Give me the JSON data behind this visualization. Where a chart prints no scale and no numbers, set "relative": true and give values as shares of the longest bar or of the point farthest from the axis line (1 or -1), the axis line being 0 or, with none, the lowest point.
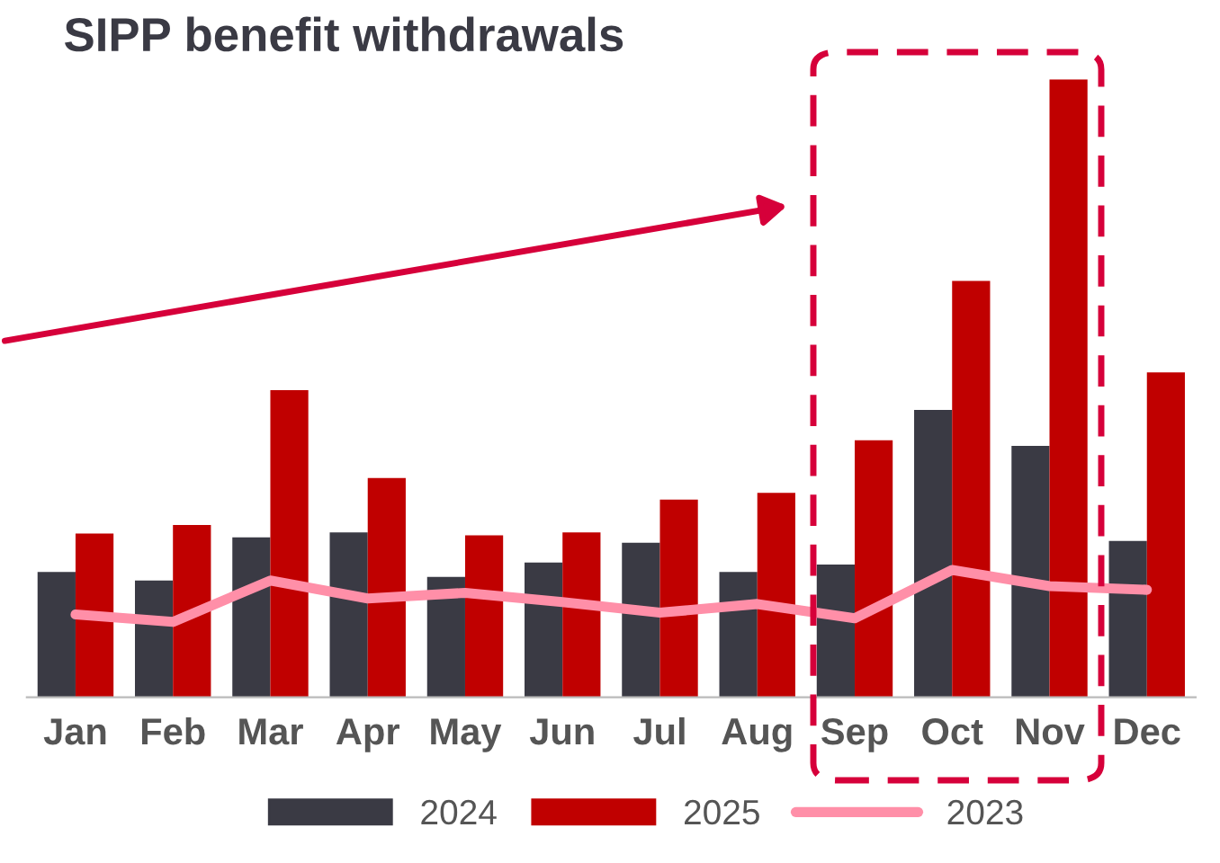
{
  "chart_data": {
    "type": "bar",
    "title": "SIPP benefit withdrawals",
    "relative": true,
    "categories": [
      "Jan",
      "Feb",
      "Mar",
      "Apr",
      "May",
      "Jun",
      "Jul",
      "Aug",
      "Sep",
      "Oct",
      "Nov",
      "Dec"
    ],
    "series": [
      {
        "name": "2024",
        "color": "#3a3a44",
        "values": [
          0.203,
          0.189,
          0.259,
          0.267,
          0.195,
          0.218,
          0.25,
          0.203,
          0.215,
          0.465,
          0.407,
          0.253
        ]
      },
      {
        "name": "2025",
        "color": "#c00000",
        "values": [
          0.265,
          0.279,
          0.497,
          0.355,
          0.262,
          0.267,
          0.32,
          0.331,
          0.416,
          0.674,
          1,
          0.526
        ]
      },
      {
        "name": "2023",
        "type": "line",
        "color": "#ff8fa8",
        "values": [
          0.134,
          0.122,
          0.189,
          0.16,
          0.169,
          0.154,
          0.137,
          0.151,
          0.128,
          0.206,
          0.18,
          0.174
        ]
      }
    ],
    "legend": "bottom",
    "grid": false,
    "marker": "none",
    "line_style": "solid"
  }
}
